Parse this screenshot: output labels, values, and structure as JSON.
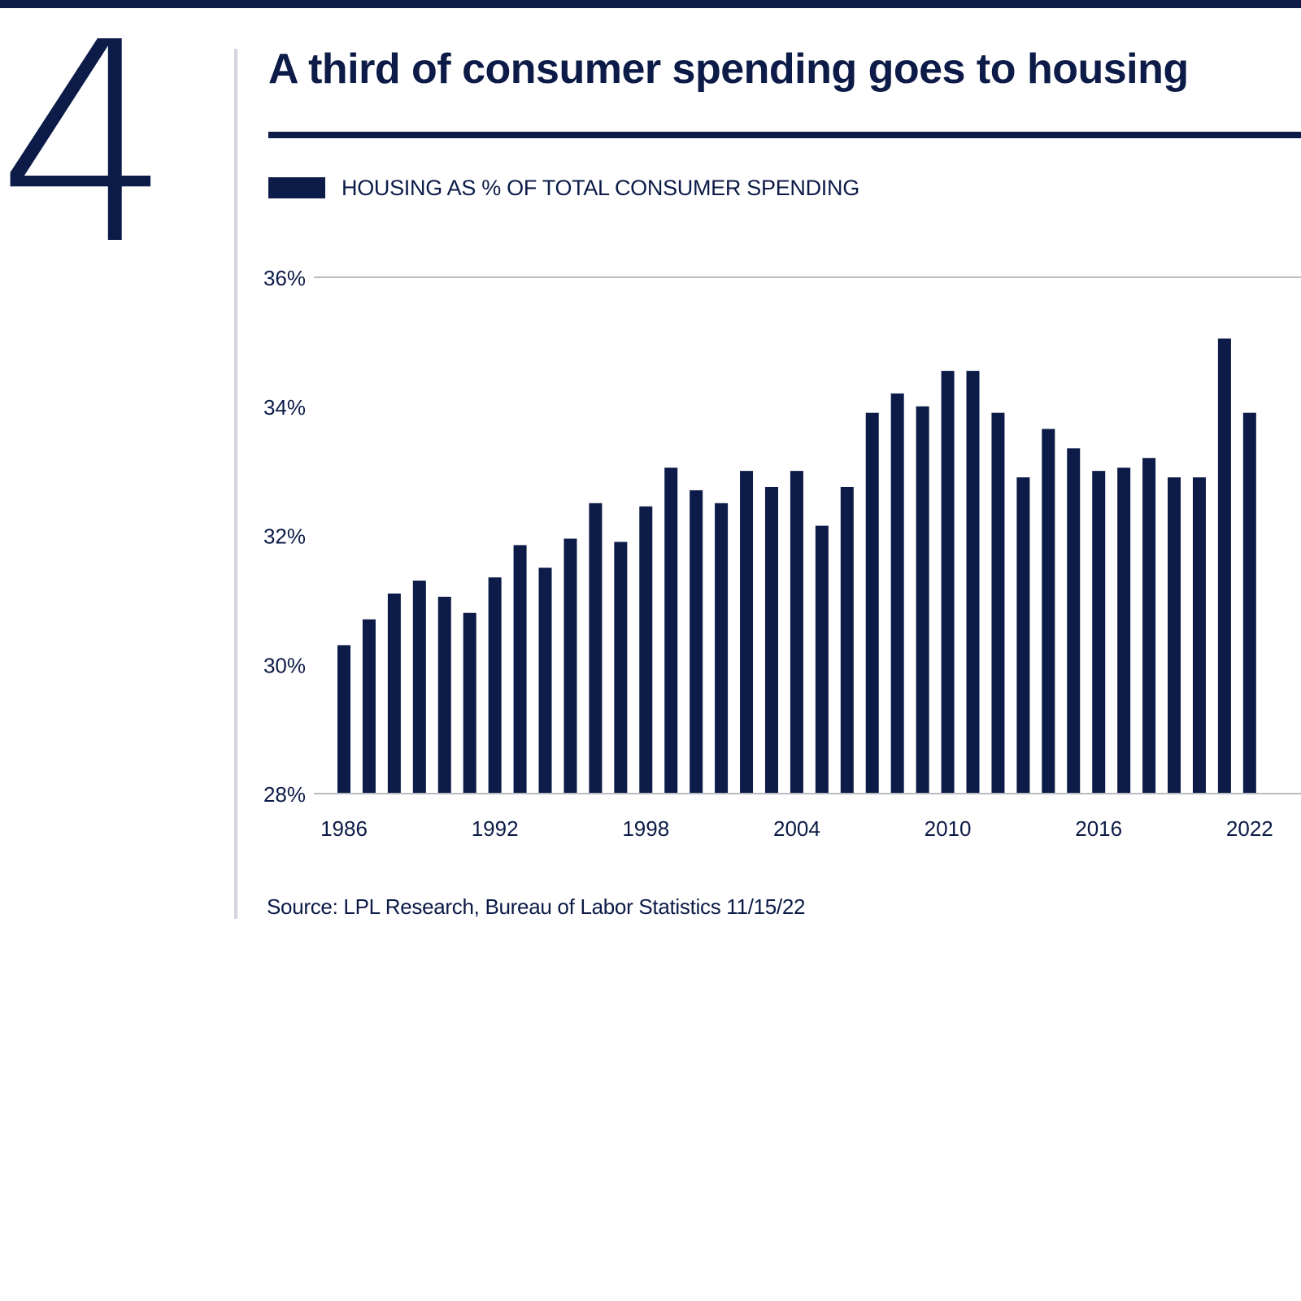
{
  "page": {
    "section_number": "4",
    "title": "A third of consumer spending goes to housing",
    "legend_label": "HOUSING AS % OF TOTAL CONSUMER SPENDING",
    "source": "Source: LPL Research, Bureau of Labor Statistics 11/15/22"
  },
  "colors": {
    "bar": "#0c1b47",
    "grid": "#b9bbc2",
    "axis": "#b9bbc2",
    "text": "#0c1b47"
  },
  "chart_data": {
    "type": "bar",
    "title": "A third of consumer spending goes to housing",
    "xlabel": "",
    "ylabel": "",
    "ylim": [
      28,
      36
    ],
    "y_ticks": [
      {
        "value": 36,
        "label": "36%"
      },
      {
        "value": 34,
        "label": "34%"
      },
      {
        "value": 32,
        "label": "32%"
      },
      {
        "value": 30,
        "label": "30%"
      },
      {
        "value": 28,
        "label": "28%"
      }
    ],
    "x_tick_labels": [
      "1986",
      "1992",
      "1998",
      "2004",
      "2010",
      "2016",
      "2022"
    ],
    "grid": false,
    "top_gridline_at": 36,
    "series": [
      {
        "name": "HOUSING AS % OF TOTAL CONSUMER SPENDING",
        "categories": [
          1986,
          1987,
          1988,
          1989,
          1990,
          1991,
          1992,
          1993,
          1994,
          1995,
          1996,
          1997,
          1998,
          1999,
          2000,
          2001,
          2002,
          2003,
          2004,
          2005,
          2006,
          2007,
          2008,
          2009,
          2010,
          2011,
          2012,
          2013,
          2014,
          2015,
          2016,
          2017,
          2018,
          2019,
          2020,
          2021,
          2022
        ],
        "values": [
          30.3,
          30.7,
          31.1,
          31.3,
          31.05,
          30.8,
          31.35,
          31.85,
          31.5,
          31.95,
          32.5,
          31.9,
          32.45,
          33.05,
          32.7,
          32.5,
          33.0,
          32.75,
          33.0,
          32.15,
          32.75,
          33.9,
          34.2,
          34.0,
          34.55,
          34.55,
          33.9,
          32.9,
          33.65,
          33.35,
          33.0,
          33.05,
          33.2,
          32.9,
          32.9,
          35.05,
          33.9
        ]
      }
    ]
  }
}
